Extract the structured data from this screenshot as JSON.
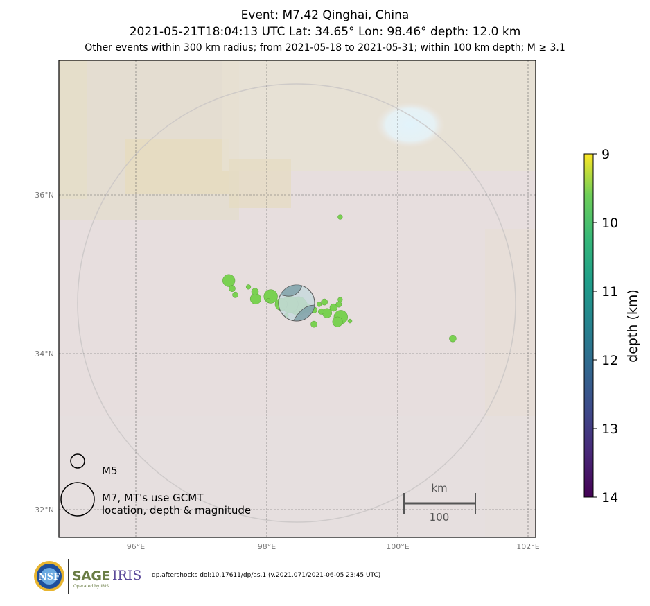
{
  "title": {
    "line1": "Event: M7.42 Qinghai, China",
    "line2": "2021-05-21T18:04:13 UTC Lat: 34.65° Lon: 98.46° depth: 12.0 km",
    "line3": "Other events within 300 km radius; from 2021-05-18 to 2021-05-31; within 100 km depth; M ≥ 3.1"
  },
  "map": {
    "lon_ticks": [
      "96°E",
      "98°E",
      "100°E",
      "102°E"
    ],
    "lat_ticks": [
      "36°N",
      "34°N",
      "32°N"
    ],
    "scale_bar_unit": "km",
    "scale_bar_value": "100",
    "legend": {
      "small_label": "M5",
      "large_label_line1": "M7, MT's use GCMT",
      "large_label_line2": "location, depth & magnitude"
    }
  },
  "colorbar": {
    "label": "depth (km)",
    "ticks": [
      "9",
      "10",
      "11",
      "12",
      "13",
      "14"
    ]
  },
  "chart_data": {
    "type": "scatter",
    "title": "Event: M7.42 Qinghai, China",
    "xlim": [
      94.8,
      102.1
    ],
    "ylim": [
      31.7,
      37.7
    ],
    "mainshock": {
      "lon": 98.46,
      "lat": 34.65,
      "depth_km": 12.0,
      "mag": 7.42
    },
    "color_scale": {
      "min": 9,
      "max": 14,
      "cmap": "viridis",
      "label": "depth (km)"
    },
    "points": [
      {
        "lon": 99.12,
        "lat": 35.72,
        "mag": 3.6,
        "depth": 10
      },
      {
        "lon": 97.42,
        "lat": 34.92,
        "mag": 4.8,
        "depth": 10
      },
      {
        "lon": 97.47,
        "lat": 34.82,
        "mag": 3.9,
        "depth": 10
      },
      {
        "lon": 97.52,
        "lat": 34.74,
        "mag": 3.8,
        "depth": 10
      },
      {
        "lon": 97.72,
        "lat": 34.84,
        "mag": 3.6,
        "depth": 10
      },
      {
        "lon": 97.82,
        "lat": 34.78,
        "mag": 4.0,
        "depth": 10
      },
      {
        "lon": 97.83,
        "lat": 34.69,
        "mag": 4.6,
        "depth": 10
      },
      {
        "lon": 98.06,
        "lat": 34.72,
        "mag": 5.0,
        "depth": 10
      },
      {
        "lon": 98.02,
        "lat": 34.67,
        "mag": 3.5,
        "depth": 10
      },
      {
        "lon": 98.22,
        "lat": 34.62,
        "mag": 4.8,
        "depth": 10
      },
      {
        "lon": 98.3,
        "lat": 34.48,
        "mag": 3.5,
        "depth": 10
      },
      {
        "lon": 98.35,
        "lat": 34.62,
        "mag": 5.4,
        "depth": 10
      },
      {
        "lon": 98.48,
        "lat": 34.6,
        "mag": 5.6,
        "depth": 10
      },
      {
        "lon": 98.62,
        "lat": 34.57,
        "mag": 4.2,
        "depth": 10
      },
      {
        "lon": 98.72,
        "lat": 34.55,
        "mag": 3.9,
        "depth": 10
      },
      {
        "lon": 98.72,
        "lat": 34.37,
        "mag": 3.9,
        "depth": 10
      },
      {
        "lon": 98.8,
        "lat": 34.62,
        "mag": 3.6,
        "depth": 10
      },
      {
        "lon": 98.83,
        "lat": 34.53,
        "mag": 3.8,
        "depth": 10
      },
      {
        "lon": 98.88,
        "lat": 34.65,
        "mag": 3.9,
        "depth": 10
      },
      {
        "lon": 98.92,
        "lat": 34.51,
        "mag": 4.4,
        "depth": 10
      },
      {
        "lon": 99.02,
        "lat": 34.58,
        "mag": 4.1,
        "depth": 10
      },
      {
        "lon": 99.1,
        "lat": 34.62,
        "mag": 3.8,
        "depth": 10
      },
      {
        "lon": 99.12,
        "lat": 34.68,
        "mag": 3.6,
        "depth": 10
      },
      {
        "lon": 99.08,
        "lat": 34.4,
        "mag": 4.5,
        "depth": 10
      },
      {
        "lon": 99.13,
        "lat": 34.46,
        "mag": 5.0,
        "depth": 10
      },
      {
        "lon": 99.27,
        "lat": 34.41,
        "mag": 3.5,
        "depth": 10
      },
      {
        "lon": 100.84,
        "lat": 34.19,
        "mag": 4.0,
        "depth": 10
      }
    ]
  }
}
